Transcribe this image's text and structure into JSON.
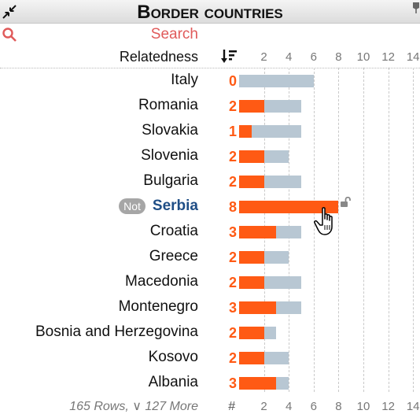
{
  "window": {
    "title": "Border countries"
  },
  "search": {
    "placeholder": "Search"
  },
  "table": {
    "column_header": "Relatedness",
    "ticks": [
      "2",
      "4",
      "6",
      "8",
      "10",
      "12",
      "14"
    ],
    "footer_rows": "165 Rows, ∨ 127 More",
    "footer_hash": "#",
    "badge": "Not",
    "rows": [
      {
        "name": "Italy",
        "count": "0",
        "value": 0,
        "total": 6
      },
      {
        "name": "Romania",
        "count": "2",
        "value": 2,
        "total": 5
      },
      {
        "name": "Slovakia",
        "count": "1",
        "value": 1,
        "total": 5
      },
      {
        "name": "Slovenia",
        "count": "2",
        "value": 2,
        "total": 4
      },
      {
        "name": "Bulgaria",
        "count": "2",
        "value": 2,
        "total": 5
      },
      {
        "name": "Serbia",
        "count": "8",
        "value": 8,
        "total": 8,
        "focus": true
      },
      {
        "name": "Croatia",
        "count": "3",
        "value": 3,
        "total": 5
      },
      {
        "name": "Greece",
        "count": "2",
        "value": 2,
        "total": 4
      },
      {
        "name": "Macedonia",
        "count": "2",
        "value": 2,
        "total": 5
      },
      {
        "name": "Montenegro",
        "count": "3",
        "value": 3,
        "total": 5
      },
      {
        "name": "Bosnia and Herzegovina",
        "count": "2",
        "value": 2,
        "total": 3
      },
      {
        "name": "Kosovo",
        "count": "2",
        "value": 2,
        "total": 4
      },
      {
        "name": "Albania",
        "count": "3",
        "value": 3,
        "total": 4
      }
    ]
  },
  "colors": {
    "accent": "#ff5a14",
    "bar_background": "#b8c7d3",
    "focus_text": "#1f4e86",
    "search": "#e05a5a"
  },
  "icons": {
    "collapse": "collapse-arrows-icon",
    "pin": "pin-icon",
    "search": "search-icon",
    "sort": "sort-descending-icon",
    "lock": "unlock-icon",
    "cursor": "hand-pointer-icon"
  }
}
